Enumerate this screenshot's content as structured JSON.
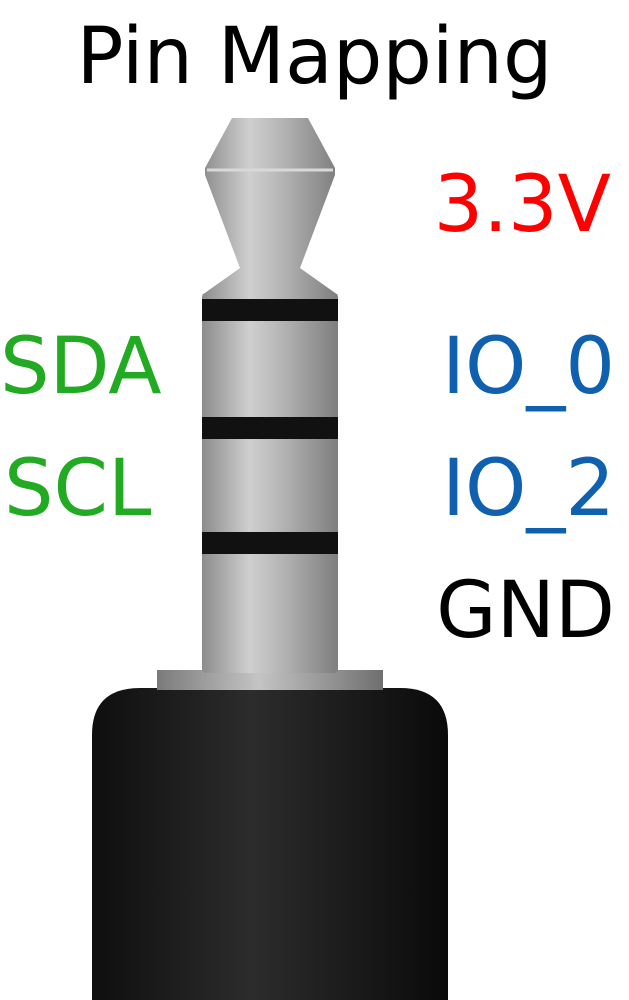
{
  "title": "Pin Mapping",
  "pins": {
    "tip": {
      "right_label": "3.3V",
      "color": "#ff0000"
    },
    "ring1": {
      "left_label": "SDA",
      "right_label": "IO_0",
      "left_color": "#22aa22",
      "right_color": "#1060b0"
    },
    "ring2": {
      "left_label": "SCL",
      "right_label": "IO_2",
      "left_color": "#22aa22",
      "right_color": "#1060b0"
    },
    "sleeve": {
      "right_label": "GND",
      "color": "#000000"
    }
  },
  "jack": {
    "metal_color": "#a8a8a8",
    "band_color": "#111111",
    "body_color": "#1a1a1a"
  }
}
